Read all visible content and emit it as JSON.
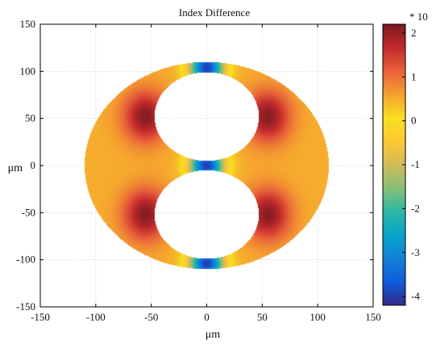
{
  "chart_data": {
    "type": "heatmap",
    "title": "Index Difference",
    "xlabel": "μm",
    "ylabel": "μm",
    "xlim": [
      -150,
      150
    ],
    "ylim": [
      -150,
      150
    ],
    "xticks": [
      -150,
      -100,
      -50,
      0,
      50,
      100,
      150
    ],
    "yticks": [
      -150,
      -100,
      -50,
      0,
      50,
      100,
      150
    ],
    "xtick_labels": [
      "-150",
      "-100",
      "-50",
      "0",
      "50",
      "100",
      "150"
    ],
    "ytick_labels": [
      "-150",
      "-100",
      "-50",
      "0",
      "50",
      "100",
      "150"
    ],
    "grid": true,
    "colorbar": {
      "range": [
        -4.2,
        2.2
      ],
      "ticks": [
        2,
        1,
        0,
        -1,
        -2,
        -3,
        -4
      ],
      "tick_labels": [
        "2",
        "1",
        "0",
        "-1",
        "-2",
        "-3",
        "-4"
      ],
      "scale_label": "* 10",
      "colormap": "jet",
      "colors": [
        "#352a87",
        "#0f5cdd",
        "#1481d6",
        "#06a4ca",
        "#2eb7a4",
        "#87bf77",
        "#d1bb59",
        "#fec832",
        "#f8e022",
        "#f5a12f",
        "#e8613a",
        "#c22a2c",
        "#7a1a1f"
      ]
    },
    "region": {
      "shape": "ellipse",
      "center": [
        0,
        0
      ],
      "semi_axes": [
        110,
        110
      ],
      "holes": [
        {
          "shape": "circle",
          "center": [
            0,
            52
          ],
          "radius": 47
        },
        {
          "shape": "circle",
          "center": [
            0,
            -52
          ],
          "radius": 47
        }
      ]
    },
    "features": [
      {
        "kind": "maximum",
        "value": 2.1,
        "x": -55,
        "y": 52
      },
      {
        "kind": "maximum",
        "value": 2.1,
        "x": 55,
        "y": 52
      },
      {
        "kind": "maximum",
        "value": 2.1,
        "x": -55,
        "y": -52
      },
      {
        "kind": "maximum",
        "value": 2.1,
        "x": 55,
        "y": -52
      },
      {
        "kind": "minimum",
        "value": -4.0,
        "x": 0,
        "y": 104
      },
      {
        "kind": "minimum",
        "value": -4.0,
        "x": 0,
        "y": 0
      },
      {
        "kind": "minimum",
        "value": -4.0,
        "x": 0,
        "y": -104
      },
      {
        "kind": "background",
        "value": 0.5
      }
    ]
  }
}
